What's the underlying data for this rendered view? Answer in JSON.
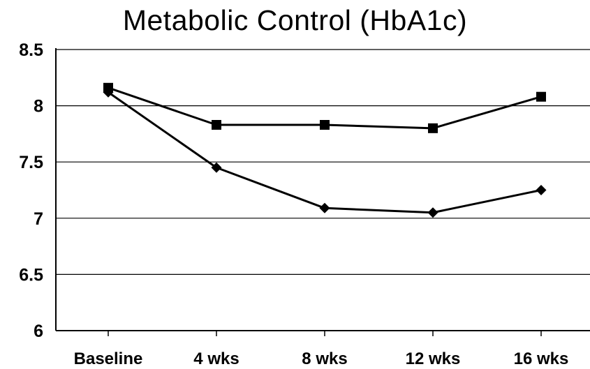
{
  "chart_data": {
    "type": "line",
    "title": "Metabolic Control (HbA1c)",
    "categories": [
      "Baseline",
      "4 wks",
      "8 wks",
      "12 wks",
      "16 wks"
    ],
    "series": [
      {
        "marker": "square",
        "color": "#000000",
        "values": [
          8.16,
          7.83,
          7.83,
          7.8,
          8.08
        ]
      },
      {
        "marker": "diamond",
        "color": "#000000",
        "values": [
          8.12,
          7.45,
          7.09,
          7.05,
          7.25
        ]
      }
    ],
    "yticks": [
      "6",
      "6.5",
      "7",
      "7.5",
      "8",
      "8.5"
    ],
    "ylim": [
      6,
      8.5
    ],
    "grid": true,
    "legend": "none"
  }
}
